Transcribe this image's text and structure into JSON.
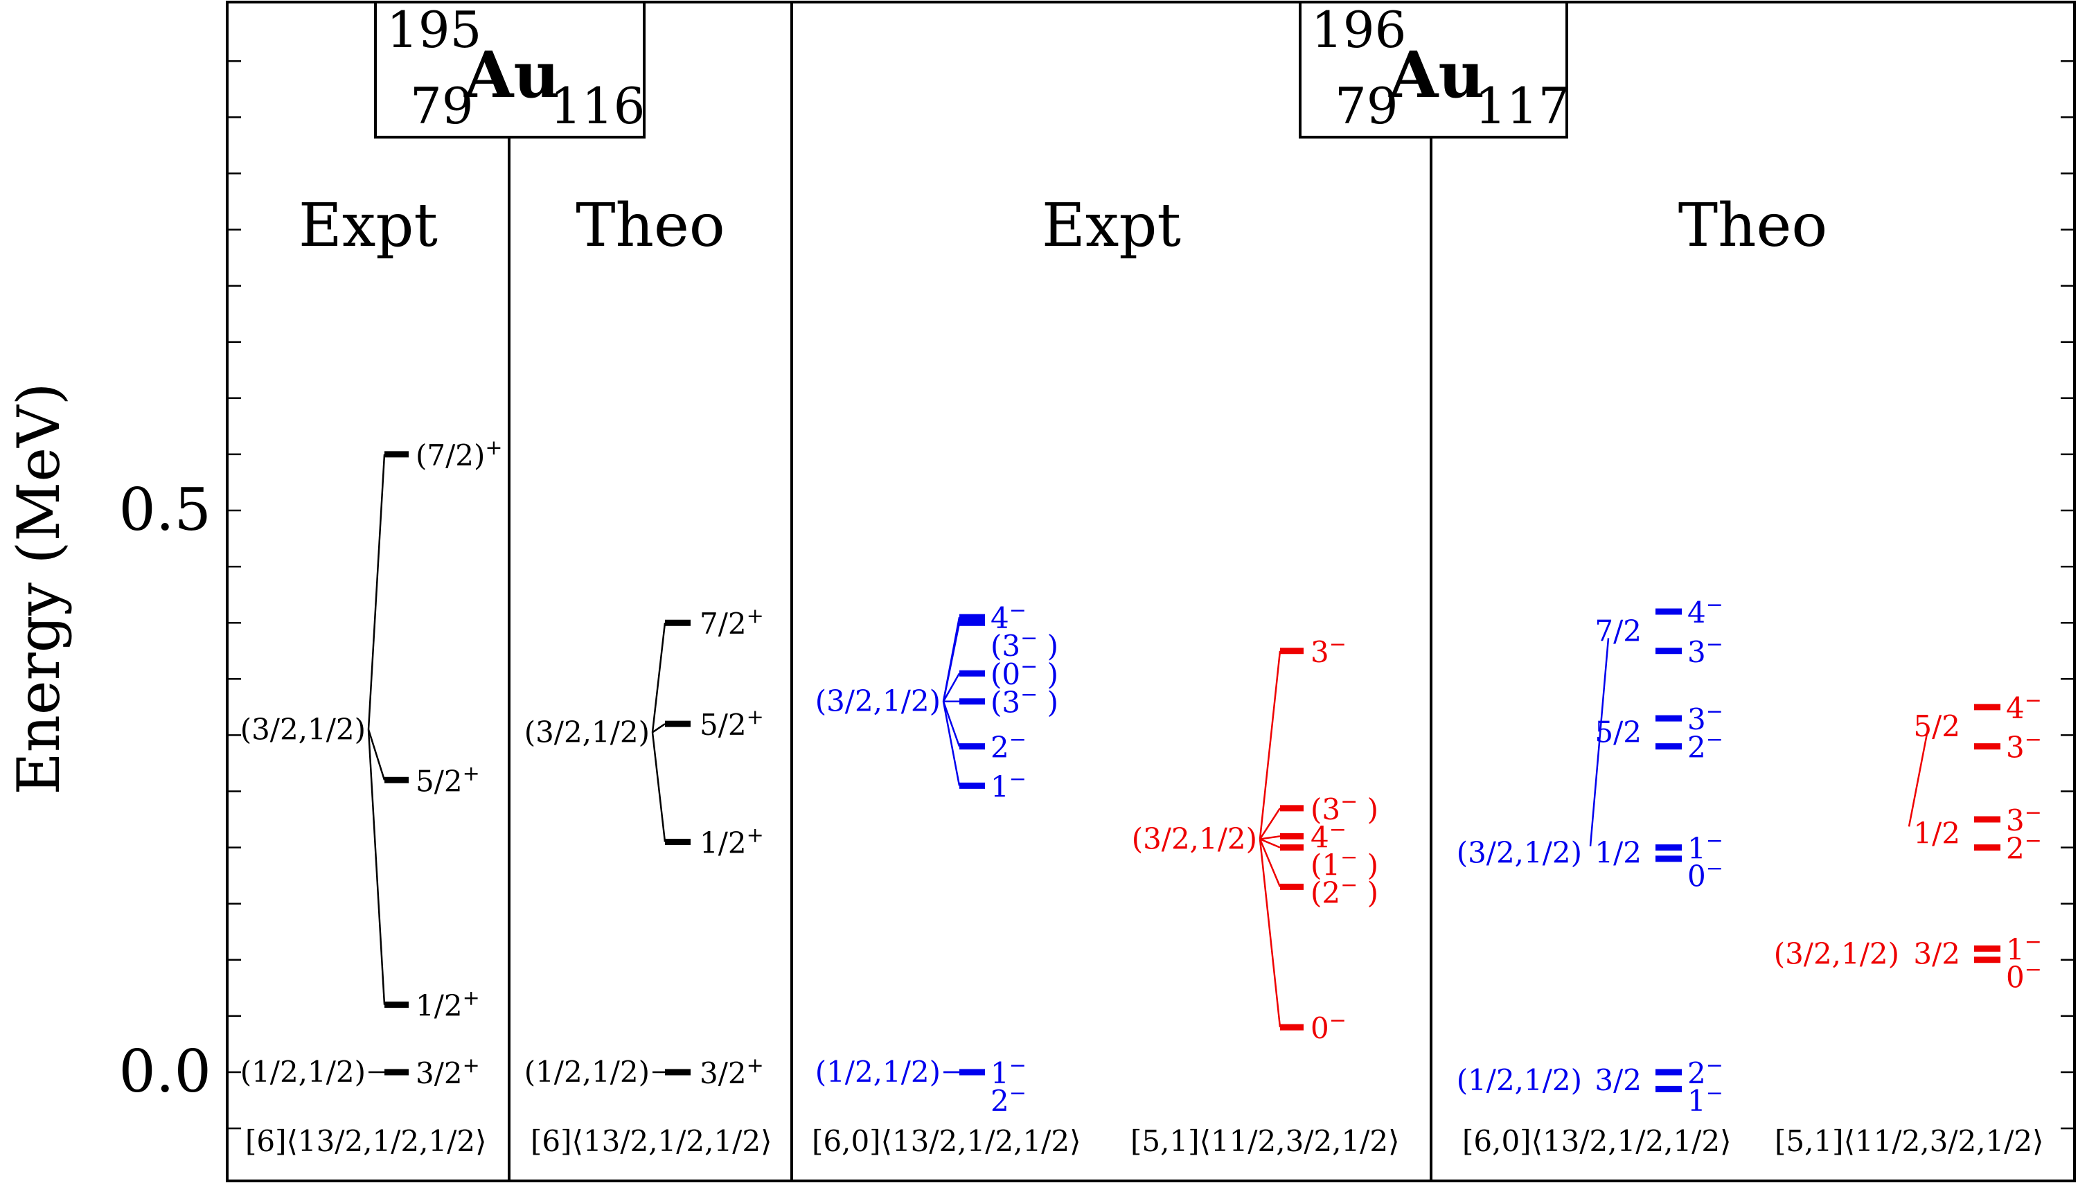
{
  "chart_data": {
    "type": "level-scheme",
    "ylabel": "Energy (MeV)",
    "ylim": [
      -0.1,
      0.95
    ],
    "yticks": [
      0.0,
      0.5
    ],
    "ytick_labels": [
      "0.0",
      "0.5"
    ],
    "nuclei": [
      {
        "id": "au195",
        "mass": "195",
        "z": "79",
        "symbol": "Au",
        "n": "116"
      },
      {
        "id": "au196",
        "mass": "196",
        "z": "79",
        "symbol": "Au",
        "n": "117"
      }
    ],
    "panels": [
      {
        "id": "au195-expt",
        "title": "Expt",
        "bands": [
          {
            "color": "#000000",
            "config": "[6]⟨13/2,1/2,1/2⟩",
            "groups": [
              {
                "label": "(1/2,1/2)",
                "from": "left",
                "levels": [
                  {
                    "e": 0.0,
                    "spin": "3/2",
                    "parity": "+"
                  }
                ]
              },
              {
                "label": "(3/2,1/2)",
                "from": "left",
                "levels": [
                  {
                    "e": 0.06,
                    "spin": "1/2",
                    "parity": "+"
                  },
                  {
                    "e": 0.26,
                    "spin": "5/2",
                    "parity": "+"
                  },
                  {
                    "e": 0.55,
                    "spin": "(7/2)",
                    "parity": "+"
                  }
                ]
              }
            ]
          }
        ]
      },
      {
        "id": "au195-theo",
        "title": "Theo",
        "bands": [
          {
            "color": "#000000",
            "config": "[6]⟨13/2,1/2,1/2⟩",
            "groups": [
              {
                "label": "(1/2,1/2)",
                "from": "left",
                "levels": [
                  {
                    "e": 0.0,
                    "spin": "3/2",
                    "parity": "+"
                  }
                ]
              },
              {
                "label": "(3/2,1/2)",
                "from": "left",
                "levels": [
                  {
                    "e": 0.205,
                    "spin": "1/2",
                    "parity": "+"
                  },
                  {
                    "e": 0.31,
                    "spin": "5/2",
                    "parity": "+"
                  },
                  {
                    "e": 0.4,
                    "spin": "7/2",
                    "parity": "+"
                  }
                ]
              }
            ]
          }
        ]
      },
      {
        "id": "au196-expt",
        "title": "Expt",
        "bands": [
          {
            "color": "#0000ee",
            "config": "[6,0]⟨13/2,1/2,1/2⟩",
            "groups": [
              {
                "label": "(1/2,1/2)",
                "from": "left",
                "levels": [
                  {
                    "e": 0.0,
                    "spin": "1",
                    "parity": "−"
                  },
                  {
                    "e": 0.0,
                    "spin": "2",
                    "parity": "−"
                  }
                ]
              },
              {
                "label": "(3/2,1/2)",
                "from": "left",
                "levels": [
                  {
                    "e": 0.255,
                    "spin": "1",
                    "parity": "−"
                  },
                  {
                    "e": 0.29,
                    "spin": "2",
                    "parity": "−"
                  },
                  {
                    "e": 0.33,
                    "spin": "(3",
                    "parity": "−",
                    "close": " )"
                  },
                  {
                    "e": 0.355,
                    "spin": "(0",
                    "parity": "−",
                    "close": " )"
                  },
                  {
                    "e": 0.4,
                    "spin": "(3",
                    "parity": "−",
                    "close": " )"
                  },
                  {
                    "e": 0.405,
                    "spin": "4",
                    "parity": "−"
                  }
                ]
              }
            ]
          },
          {
            "color": "#ee0000",
            "config": "[5,1]⟨11/2,3/2,1/2⟩",
            "groups": [
              {
                "label": "(3/2,1/2)",
                "from": "left",
                "levels": [
                  {
                    "e": 0.04,
                    "spin": "0",
                    "parity": "−"
                  },
                  {
                    "e": 0.165,
                    "spin": "(2",
                    "parity": "−",
                    "close": " )"
                  },
                  {
                    "e": 0.2,
                    "spin": "(1",
                    "parity": "−",
                    "close": " )"
                  },
                  {
                    "e": 0.21,
                    "spin": "4",
                    "parity": "−"
                  },
                  {
                    "e": 0.235,
                    "spin": "(3",
                    "parity": "−",
                    "close": " )"
                  },
                  {
                    "e": 0.375,
                    "spin": "3",
                    "parity": "−"
                  }
                ]
              }
            ]
          }
        ]
      },
      {
        "id": "au196-theo",
        "title": "Theo",
        "bands": [
          {
            "color": "#0000ee",
            "config": "[6,0]⟨13/2,1/2,1/2⟩",
            "groups": [
              {
                "label": "(1/2,1/2)",
                "sub": "3/2",
                "levels": [
                  {
                    "e": 0.0,
                    "spin": "2",
                    "parity": "−"
                  },
                  {
                    "e": -0.015,
                    "spin": "1",
                    "parity": "−"
                  }
                ]
              },
              {
                "label": "(3/2,1/2)",
                "sub": "1/2",
                "levels": [
                  {
                    "e": 0.2,
                    "spin": "1",
                    "parity": "−"
                  },
                  {
                    "e": 0.19,
                    "spin": "0",
                    "parity": "−"
                  }
                ]
              },
              {
                "label": "",
                "sub": "5/2",
                "levels": [
                  {
                    "e": 0.315,
                    "spin": "3",
                    "parity": "−"
                  },
                  {
                    "e": 0.29,
                    "spin": "2",
                    "parity": "−"
                  }
                ]
              },
              {
                "label": "",
                "sub": "7/2",
                "levels": [
                  {
                    "e": 0.41,
                    "spin": "4",
                    "parity": "−"
                  },
                  {
                    "e": 0.375,
                    "spin": "3",
                    "parity": "−"
                  }
                ]
              }
            ]
          },
          {
            "color": "#ee0000",
            "config": "[5,1]⟨11/2,3/2,1/2⟩",
            "groups": [
              {
                "label": "(3/2,1/2)",
                "sub": "3/2",
                "levels": [
                  {
                    "e": 0.11,
                    "spin": "1",
                    "parity": "−"
                  },
                  {
                    "e": 0.1,
                    "spin": "0",
                    "parity": "−"
                  }
                ]
              },
              {
                "label": "",
                "sub": "1/2",
                "levels": [
                  {
                    "e": 0.225,
                    "spin": "3",
                    "parity": "−"
                  },
                  {
                    "e": 0.2,
                    "spin": "2",
                    "parity": "−"
                  }
                ]
              },
              {
                "label": "",
                "sub": "5/2",
                "levels": [
                  {
                    "e": 0.325,
                    "spin": "4",
                    "parity": "−"
                  },
                  {
                    "e": 0.29,
                    "spin": "3",
                    "parity": "−"
                  }
                ]
              }
            ]
          }
        ]
      }
    ]
  }
}
